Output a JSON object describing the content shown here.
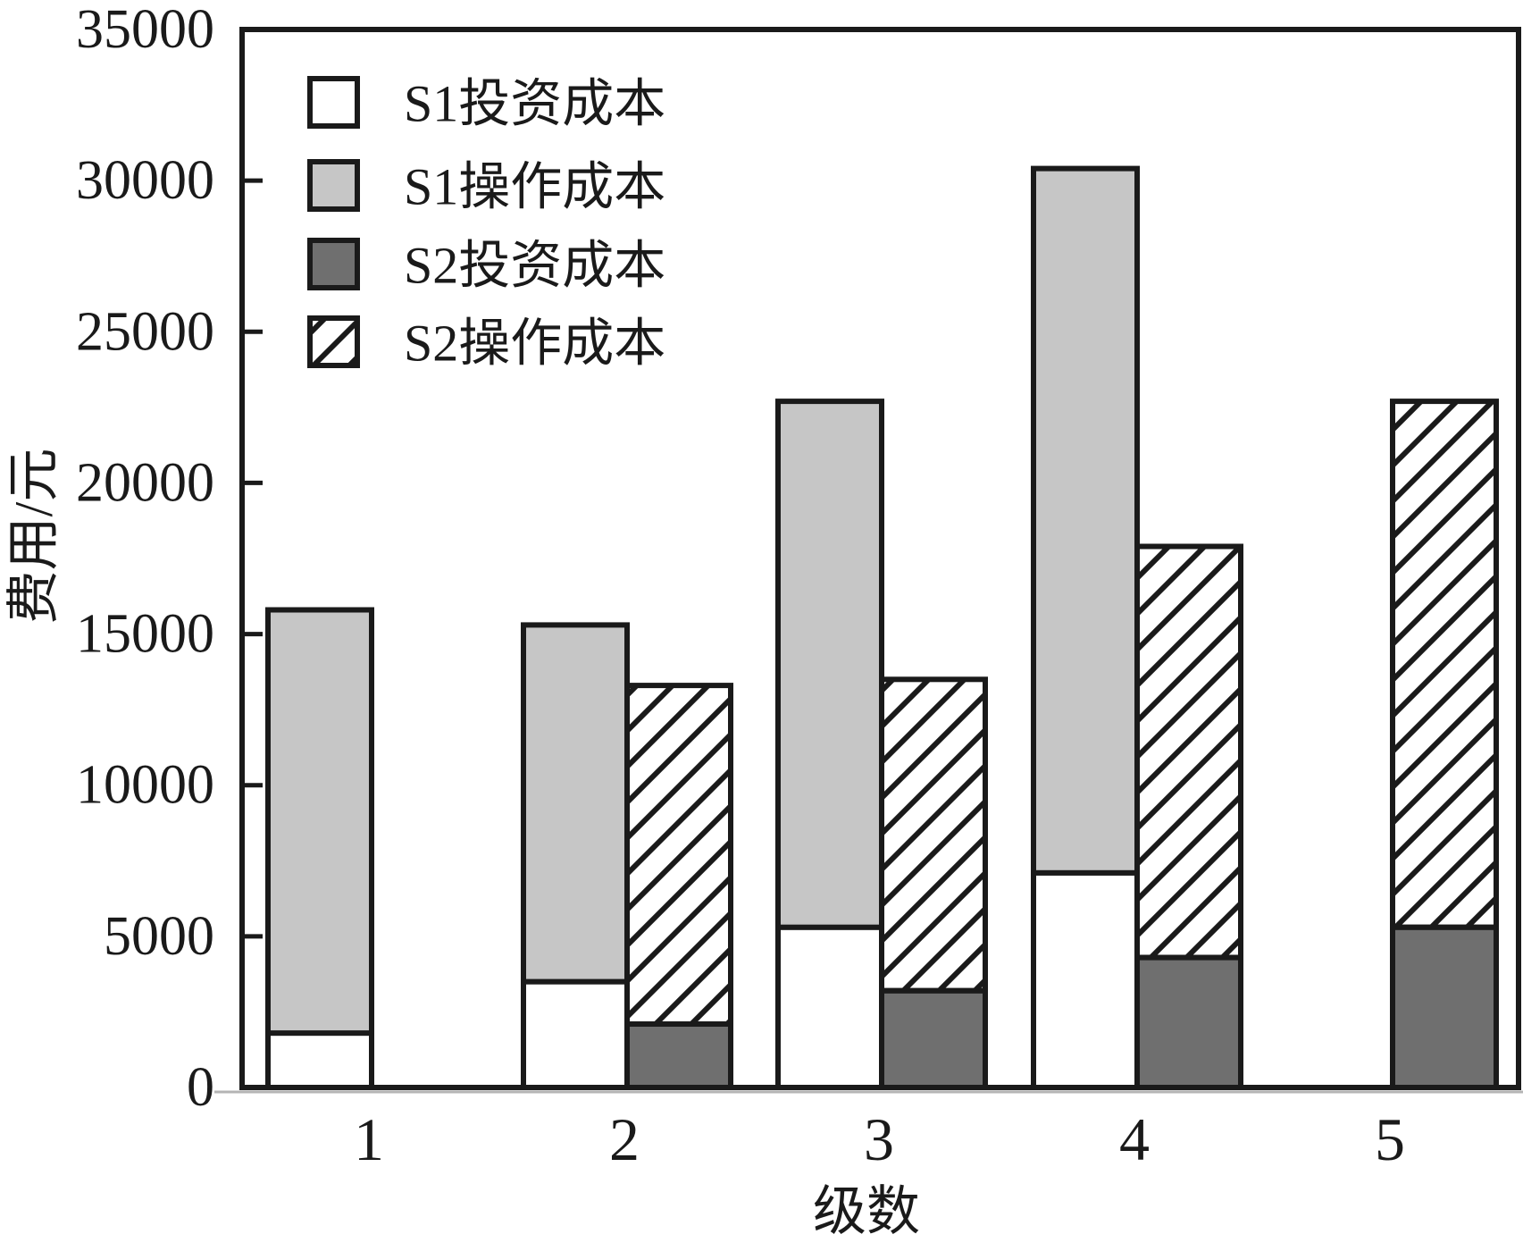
{
  "page": {
    "background": "#ffffff"
  },
  "colors": {
    "white": "#ffffff",
    "light_gray": "#c6c6c6",
    "dark_gray": "#6f6f6f",
    "line": "#1a1a1a",
    "shadow": "#b4b4b4"
  },
  "chart_data": {
    "type": "bar",
    "stacked": true,
    "title": "",
    "xlabel": "级数",
    "ylabel": "费用/元",
    "categories": [
      "1",
      "2",
      "3",
      "4",
      "5"
    ],
    "ylim": [
      0,
      35000
    ],
    "yticks": [
      0,
      5000,
      10000,
      15000,
      20000,
      25000,
      30000,
      35000
    ],
    "grid": false,
    "legend_position": "upper left inside plot",
    "bar_group": "two stacked bars per category: S1 stack (left), S2 stack (right); S2 absent at stage 1, S1 absent at stage 5",
    "series": [
      {
        "name": "S1投资成本",
        "stack": "S1",
        "swatch": "white",
        "values": [
          1800,
          3500,
          5300,
          7100,
          0
        ]
      },
      {
        "name": "S1操作成本",
        "stack": "S1",
        "swatch": "light_gray",
        "values": [
          14000,
          11800,
          17400,
          23300,
          0
        ]
      },
      {
        "name": "S2投资成本",
        "stack": "S2",
        "swatch": "dark_gray",
        "values": [
          0,
          2100,
          3200,
          4300,
          5300
        ]
      },
      {
        "name": "S2操作成本",
        "stack": "S2",
        "swatch": "hatched",
        "values": [
          0,
          11200,
          10300,
          13600,
          17400
        ]
      }
    ],
    "stack_totals": {
      "S1": [
        15800,
        15300,
        22700,
        30400,
        0
      ],
      "S2": [
        0,
        13300,
        13500,
        17900,
        22700
      ]
    }
  }
}
